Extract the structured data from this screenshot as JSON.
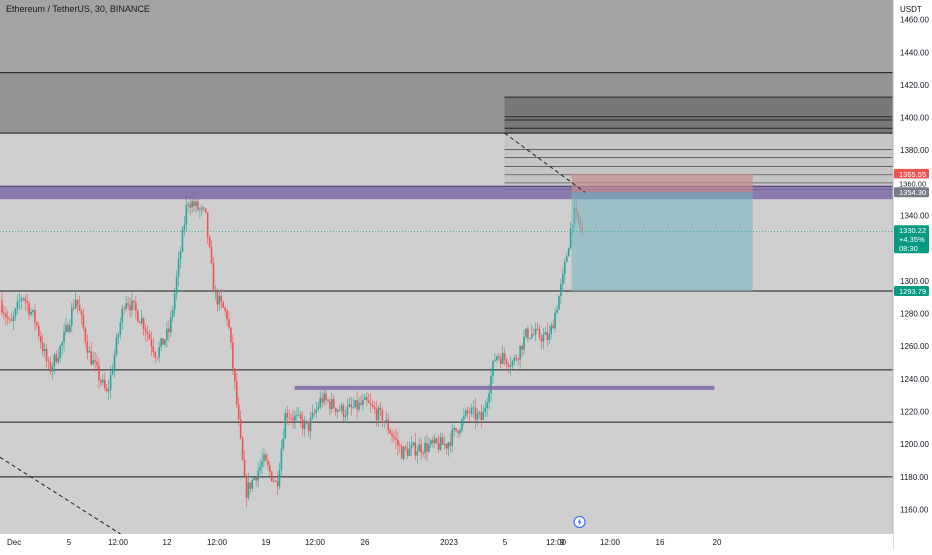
{
  "header": {
    "title": "Ethereum / TetherUS, 30, BINANCE",
    "currency": "USDT"
  },
  "price_tags": {
    "stop_loss": "1365.55",
    "level_1360": "1360.00",
    "entry": "1354.30",
    "last_price": "1330.22",
    "last_change": "+4.35%",
    "countdown": "08:30",
    "take_profit": "1293.79"
  },
  "colors": {
    "background": "#cfcfcf",
    "upper_dark_zone": "#787878",
    "upper_mid_zone": "#949494",
    "resistance_band": "#7e6aa6",
    "position_stop": "#c98d8d",
    "position_target": "#7ab6bf",
    "candle_up": "#26a69a",
    "candle_down": "#ef5350",
    "price_label_red": "#ef5350",
    "price_label_green": "#089981",
    "axis_background": "#ffffff"
  },
  "chart_data": {
    "type": "candlestick",
    "symbol": "Ethereum / TetherUS",
    "interval": "30",
    "exchange": "BINANCE",
    "currency": "USDT",
    "ylim": [
      1145,
      1472
    ],
    "y_ticks": [
      1160,
      1180,
      1200,
      1220,
      1240,
      1260,
      1280,
      1300,
      1320,
      1340,
      1360,
      1380,
      1400,
      1420,
      1440,
      1460
    ],
    "y_tick_labels": [
      "1160.00",
      "1180.00",
      "1200.00",
      "1220.00",
      "1240.00",
      "1260.00",
      "1280.00",
      "1300.00",
      "1320.00",
      "1340.00",
      "1360.00",
      "1380.00",
      "1400.00",
      "1420.00",
      "1440.00",
      "1460.00"
    ],
    "x_tick_labels": [
      "Dec",
      "5",
      "12:00",
      "12",
      "12:00",
      "19",
      "12:00",
      "26",
      "2023",
      "5",
      "12:00",
      "9",
      "12:00",
      "16",
      "20"
    ],
    "price_path": [
      {
        "t": 0.0,
        "p": 1288
      },
      {
        "t": 0.012,
        "p": 1272
      },
      {
        "t": 0.025,
        "p": 1292
      },
      {
        "t": 0.04,
        "p": 1275
      },
      {
        "t": 0.055,
        "p": 1245
      },
      {
        "t": 0.07,
        "p": 1262
      },
      {
        "t": 0.085,
        "p": 1290
      },
      {
        "t": 0.1,
        "p": 1255
      },
      {
        "t": 0.12,
        "p": 1230
      },
      {
        "t": 0.14,
        "p": 1290
      },
      {
        "t": 0.16,
        "p": 1275
      },
      {
        "t": 0.175,
        "p": 1255
      },
      {
        "t": 0.19,
        "p": 1270
      },
      {
        "t": 0.21,
        "p": 1350
      },
      {
        "t": 0.23,
        "p": 1340
      },
      {
        "t": 0.24,
        "p": 1292
      },
      {
        "t": 0.255,
        "p": 1278
      },
      {
        "t": 0.265,
        "p": 1225
      },
      {
        "t": 0.275,
        "p": 1170
      },
      {
        "t": 0.295,
        "p": 1190
      },
      {
        "t": 0.31,
        "p": 1175
      },
      {
        "t": 0.32,
        "p": 1220
      },
      {
        "t": 0.345,
        "p": 1210
      },
      {
        "t": 0.36,
        "p": 1228
      },
      {
        "t": 0.385,
        "p": 1220
      },
      {
        "t": 0.41,
        "p": 1225
      },
      {
        "t": 0.43,
        "p": 1215
      },
      {
        "t": 0.45,
        "p": 1195
      },
      {
        "t": 0.47,
        "p": 1198
      },
      {
        "t": 0.5,
        "p": 1200
      },
      {
        "t": 0.525,
        "p": 1220
      },
      {
        "t": 0.54,
        "p": 1215
      },
      {
        "t": 0.555,
        "p": 1255
      },
      {
        "t": 0.575,
        "p": 1250
      },
      {
        "t": 0.59,
        "p": 1268
      },
      {
        "t": 0.615,
        "p": 1265
      },
      {
        "t": 0.63,
        "p": 1300
      },
      {
        "t": 0.642,
        "p": 1342
      },
      {
        "t": 0.652,
        "p": 1330
      }
    ],
    "horizontal_lines": [
      1427.5,
      1390.5,
      1293.8,
      1245.5,
      1213.5,
      1180.0
    ],
    "upper_zone": [
      1390.5,
      1427.5
    ],
    "upper_zone_box": {
      "t0": 0.565,
      "t1": 1.0,
      "y0": 1390.5,
      "y1": 1412.5,
      "lines": [
        1412.5,
        1400.5,
        1398.5,
        1393.5
      ]
    },
    "fib_box": {
      "t0": 0.565,
      "t1": 1.0,
      "lines": [
        1380.5,
        1375.5,
        1370.0,
        1365.0,
        1360.0,
        1356.0
      ]
    },
    "resistance_band": [
      1350,
      1358
    ],
    "support_segment": {
      "t0": 0.33,
      "t1": 0.8,
      "price": 1234.5
    },
    "position": {
      "t0": 0.64,
      "t1": 0.843,
      "stop": 1365.55,
      "entry": 1354.3,
      "target": 1293.79
    },
    "last_price": 1330.22,
    "diagonals": [
      {
        "t0": 0.565,
        "p0": 1390.5,
        "t1": 0.655,
        "p1": 1354.3
      },
      {
        "t0": 0.0,
        "p0": 1192.0,
        "t1": 0.135,
        "p1": 1145.0
      }
    ],
    "lightning_marker_t": 0.649
  }
}
